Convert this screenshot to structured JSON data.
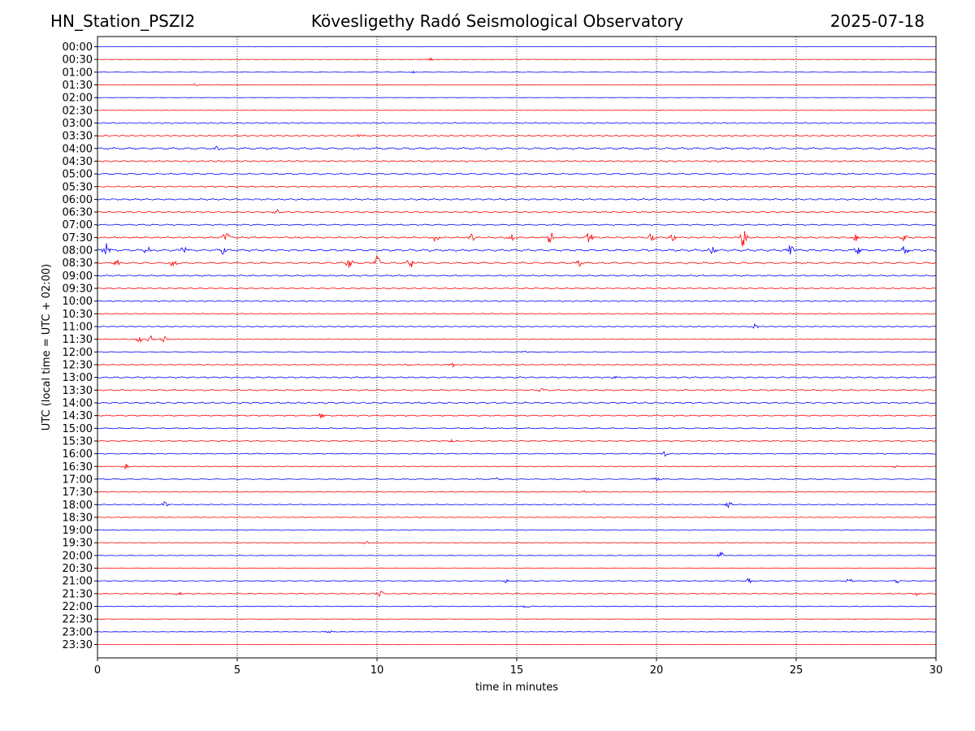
{
  "header": {
    "station": "HN_Station_PSZI2",
    "observatory": "Kövesligethy Radó Seismological Observatory",
    "date": "2025-07-18"
  },
  "chart_data": {
    "type": "line",
    "xlabel": "time in minutes",
    "ylabel": "UTC (local time = UTC + 02:00)",
    "xlim": [
      0,
      30
    ],
    "xticks": [
      0,
      5,
      10,
      15,
      20,
      25,
      30
    ],
    "vertical_gridlines": [
      5,
      10,
      15,
      20,
      25
    ],
    "row_labels": [
      "00:00",
      "00:30",
      "01:00",
      "01:30",
      "02:00",
      "02:30",
      "03:00",
      "03:30",
      "04:00",
      "04:30",
      "05:00",
      "05:30",
      "06:00",
      "06:30",
      "07:00",
      "07:30",
      "08:00",
      "08:30",
      "09:00",
      "09:30",
      "10:00",
      "10:30",
      "11:00",
      "11:30",
      "12:00",
      "12:30",
      "13:00",
      "13:30",
      "14:00",
      "14:30",
      "15:00",
      "15:30",
      "16:00",
      "16:30",
      "17:00",
      "17:30",
      "18:00",
      "18:30",
      "19:00",
      "19:30",
      "20:00",
      "20:30",
      "21:00",
      "21:30",
      "22:00",
      "22:30",
      "23:00",
      "23:30"
    ],
    "trace_colors": [
      "#0000ff",
      "#ff0000"
    ],
    "row_noise": [
      0.2,
      0.2,
      0.3,
      0.3,
      0.2,
      0.2,
      0.8,
      1.0,
      1.3,
      1.0,
      1.0,
      0.8,
      1.0,
      0.9,
      0.8,
      1.0,
      1.4,
      1.2,
      0.9,
      0.8,
      0.7,
      0.7,
      0.6,
      0.5,
      0.5,
      0.6,
      0.9,
      0.9,
      1.0,
      0.8,
      0.7,
      0.6,
      0.6,
      0.5,
      0.6,
      0.5,
      0.6,
      0.4,
      0.5,
      0.4,
      0.4,
      0.4,
      0.6,
      0.6,
      0.5,
      0.3,
      0.3,
      0.2
    ],
    "bursts": [
      {
        "row": 1,
        "minute": 11.9,
        "amplitude": 2
      },
      {
        "row": 2,
        "minute": 11.3,
        "amplitude": 1.2
      },
      {
        "row": 3,
        "minute": 3.5,
        "amplitude": 1.5
      },
      {
        "row": 7,
        "minute": 9.4,
        "amplitude": 3
      },
      {
        "row": 8,
        "minute": 4.3,
        "amplitude": 3
      },
      {
        "row": 13,
        "minute": 6.4,
        "amplitude": 3
      },
      {
        "row": 15,
        "minute": 4.6,
        "amplitude": 9
      },
      {
        "row": 15,
        "minute": 12.1,
        "amplitude": 6
      },
      {
        "row": 15,
        "minute": 13.4,
        "amplitude": 6
      },
      {
        "row": 15,
        "minute": 14.8,
        "amplitude": 7
      },
      {
        "row": 15,
        "minute": 16.2,
        "amplitude": 7
      },
      {
        "row": 15,
        "minute": 17.6,
        "amplitude": 8
      },
      {
        "row": 15,
        "minute": 19.8,
        "amplitude": 5
      },
      {
        "row": 15,
        "minute": 20.6,
        "amplitude": 5
      },
      {
        "row": 15,
        "minute": 23.1,
        "amplitude": 11
      },
      {
        "row": 15,
        "minute": 27.1,
        "amplitude": 5
      },
      {
        "row": 15,
        "minute": 28.9,
        "amplitude": 6
      },
      {
        "row": 16,
        "minute": 0.3,
        "amplitude": 11
      },
      {
        "row": 16,
        "minute": 1.8,
        "amplitude": 5
      },
      {
        "row": 16,
        "minute": 3.1,
        "amplitude": 6
      },
      {
        "row": 16,
        "minute": 4.5,
        "amplitude": 6
      },
      {
        "row": 16,
        "minute": 22.0,
        "amplitude": 5
      },
      {
        "row": 16,
        "minute": 24.8,
        "amplitude": 8
      },
      {
        "row": 16,
        "minute": 27.2,
        "amplitude": 6
      },
      {
        "row": 16,
        "minute": 28.9,
        "amplitude": 6
      },
      {
        "row": 17,
        "minute": 0.7,
        "amplitude": 4
      },
      {
        "row": 17,
        "minute": 2.7,
        "amplitude": 6
      },
      {
        "row": 17,
        "minute": 9.0,
        "amplitude": 6
      },
      {
        "row": 17,
        "minute": 10.0,
        "amplitude": 9
      },
      {
        "row": 17,
        "minute": 11.2,
        "amplitude": 6
      },
      {
        "row": 17,
        "minute": 17.2,
        "amplitude": 6
      },
      {
        "row": 22,
        "minute": 23.5,
        "amplitude": 4
      },
      {
        "row": 23,
        "minute": 1.5,
        "amplitude": 4
      },
      {
        "row": 23,
        "minute": 1.9,
        "amplitude": 4
      },
      {
        "row": 23,
        "minute": 2.4,
        "amplitude": 4
      },
      {
        "row": 24,
        "minute": 15.3,
        "amplitude": 2
      },
      {
        "row": 25,
        "minute": 11.1,
        "amplitude": 2
      },
      {
        "row": 25,
        "minute": 12.7,
        "amplitude": 3
      },
      {
        "row": 26,
        "minute": 18.5,
        "amplitude": 2
      },
      {
        "row": 27,
        "minute": 15.9,
        "amplitude": 3
      },
      {
        "row": 29,
        "minute": 8.0,
        "amplitude": 3
      },
      {
        "row": 31,
        "minute": 12.7,
        "amplitude": 2
      },
      {
        "row": 32,
        "minute": 20.3,
        "amplitude": 4
      },
      {
        "row": 33,
        "minute": 1.0,
        "amplitude": 3
      },
      {
        "row": 33,
        "minute": 28.5,
        "amplitude": 2
      },
      {
        "row": 34,
        "minute": 14.3,
        "amplitude": 2
      },
      {
        "row": 34,
        "minute": 20.0,
        "amplitude": 2
      },
      {
        "row": 35,
        "minute": 17.4,
        "amplitude": 2
      },
      {
        "row": 36,
        "minute": 2.4,
        "amplitude": 4
      },
      {
        "row": 36,
        "minute": 22.6,
        "amplitude": 4
      },
      {
        "row": 39,
        "minute": 9.6,
        "amplitude": 2
      },
      {
        "row": 40,
        "minute": 22.3,
        "amplitude": 4
      },
      {
        "row": 42,
        "minute": 14.6,
        "amplitude": 3
      },
      {
        "row": 42,
        "minute": 23.3,
        "amplitude": 3
      },
      {
        "row": 42,
        "minute": 26.9,
        "amplitude": 3
      },
      {
        "row": 42,
        "minute": 28.6,
        "amplitude": 3
      },
      {
        "row": 43,
        "minute": 2.9,
        "amplitude": 3
      },
      {
        "row": 43,
        "minute": 10.1,
        "amplitude": 4
      },
      {
        "row": 43,
        "minute": 29.3,
        "amplitude": 3
      },
      {
        "row": 44,
        "minute": 15.3,
        "amplitude": 4
      },
      {
        "row": 46,
        "minute": 8.3,
        "amplitude": 2
      }
    ]
  }
}
